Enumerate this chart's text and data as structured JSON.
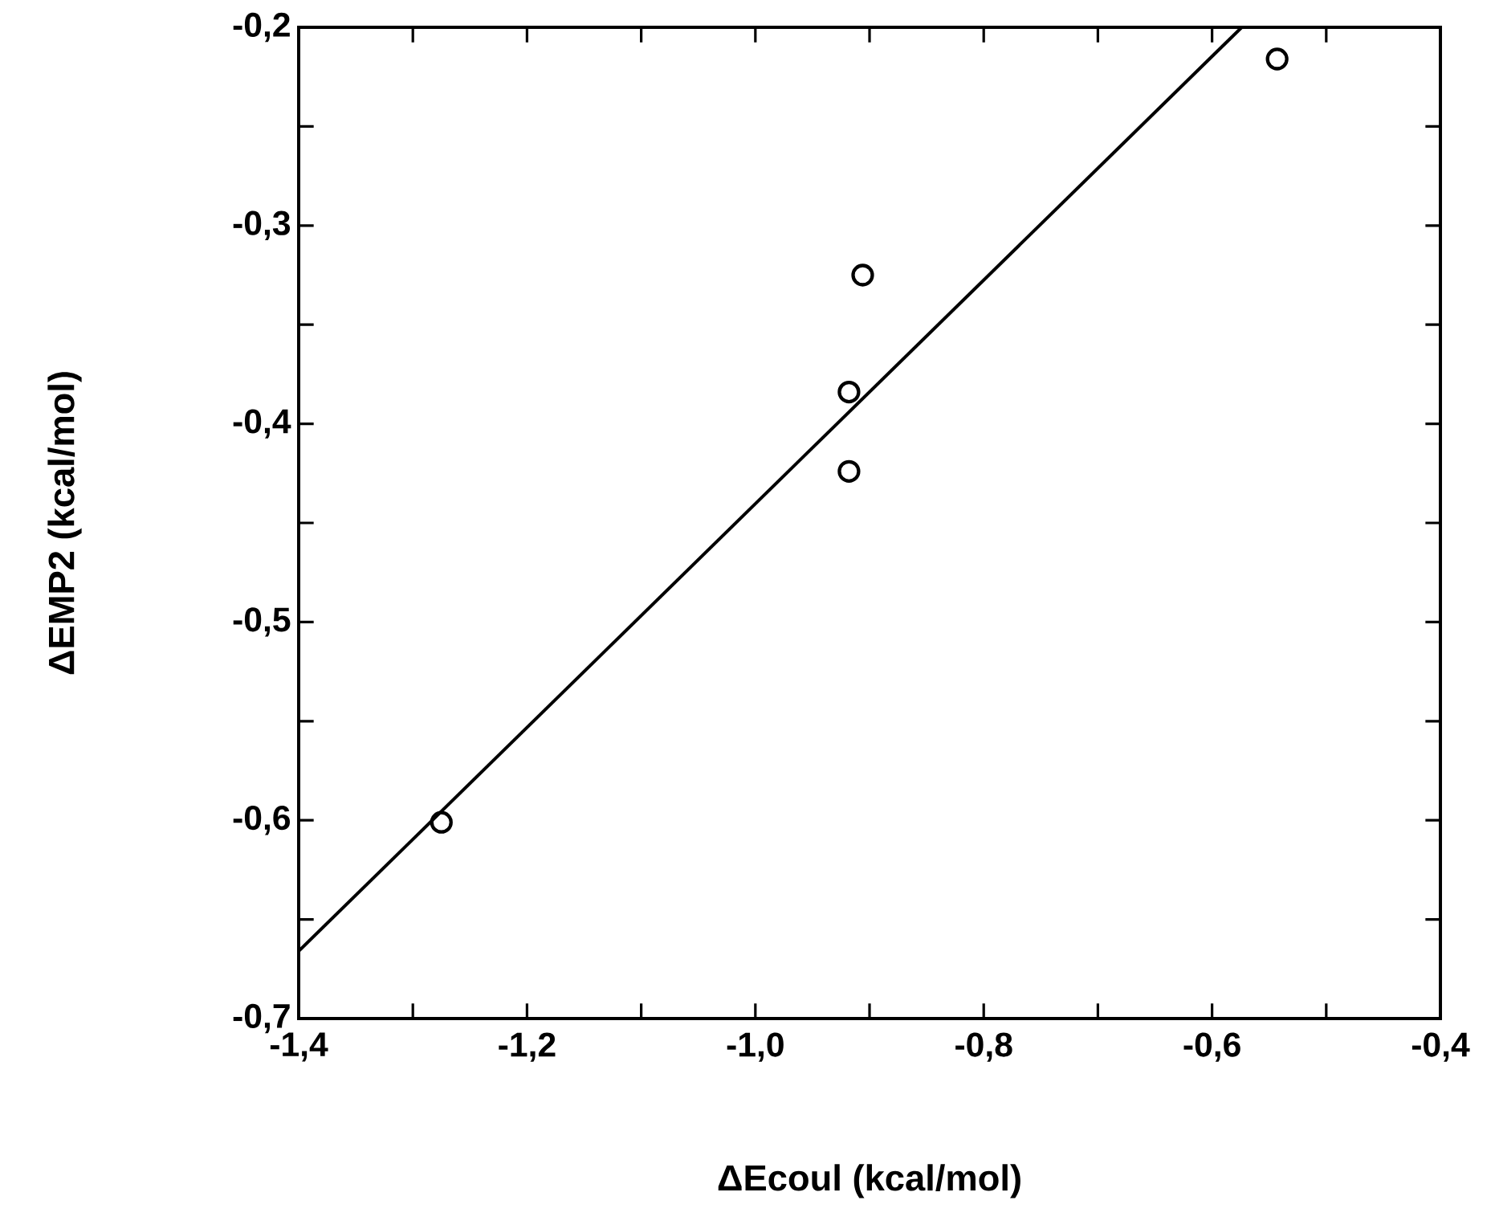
{
  "chart_data": {
    "type": "scatter",
    "xlabel": "ΔEcoul (kcal/mol)",
    "ylabel": "ΔEMP2 (kcal/mol)",
    "xlim": [
      -1.4,
      -0.4
    ],
    "ylim": [
      -0.7,
      -0.2
    ],
    "xticks": [
      {
        "value": -1.4,
        "label": "-1,4"
      },
      {
        "value": -1.3,
        "label": null
      },
      {
        "value": -1.2,
        "label": "-1,2"
      },
      {
        "value": -1.1,
        "label": null
      },
      {
        "value": -1.0,
        "label": "-1,0"
      },
      {
        "value": -0.9,
        "label": null
      },
      {
        "value": -0.8,
        "label": "-0,8"
      },
      {
        "value": -0.7,
        "label": null
      },
      {
        "value": -0.6,
        "label": "-0,6"
      },
      {
        "value": -0.5,
        "label": null
      },
      {
        "value": -0.4,
        "label": "-0,4"
      }
    ],
    "yticks": [
      {
        "value": -0.7,
        "label": "-0,7"
      },
      {
        "value": -0.65,
        "label": null
      },
      {
        "value": -0.6,
        "label": "-0,6"
      },
      {
        "value": -0.55,
        "label": null
      },
      {
        "value": -0.5,
        "label": "-0,5"
      },
      {
        "value": -0.45,
        "label": null
      },
      {
        "value": -0.4,
        "label": "-0,4"
      },
      {
        "value": -0.35,
        "label": null
      },
      {
        "value": -0.3,
        "label": "-0,3"
      },
      {
        "value": -0.25,
        "label": null
      },
      {
        "value": -0.2,
        "label": "-0,2"
      }
    ],
    "series": [
      {
        "color": "#000000",
        "marker": "circle",
        "x": [
          -1.275,
          -0.918,
          -0.918,
          -0.906,
          -0.543
        ],
        "values": [
          -0.601,
          -0.424,
          -0.384,
          -0.325,
          -0.216
        ]
      },
      {
        "type": "line",
        "color": "#000000",
        "line_style": "solid",
        "x": [
          -1.4,
          -0.574
        ],
        "values": [
          -0.666,
          -0.2
        ]
      }
    ]
  }
}
